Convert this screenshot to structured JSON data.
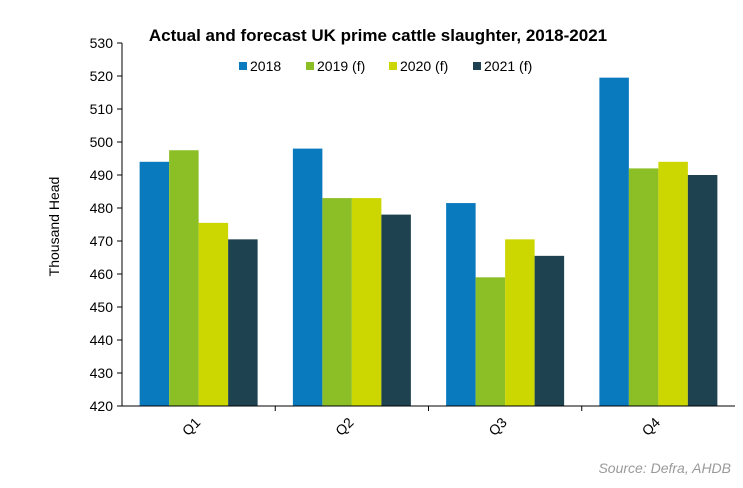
{
  "chart_data": {
    "type": "bar",
    "title": "Actual and forecast UK prime cattle slaughter, 2018-2021",
    "xlabel": "",
    "ylabel": "Thousand  Head",
    "ylim": [
      420,
      530
    ],
    "yticks": [
      420,
      430,
      440,
      450,
      460,
      470,
      480,
      490,
      500,
      510,
      520,
      530
    ],
    "categories": [
      "Q1",
      "Q2",
      "Q3",
      "Q4"
    ],
    "legend_position": "top",
    "grid": false,
    "series": [
      {
        "name": "2018",
        "color": "#0A7ABF",
        "values": [
          494,
          498,
          481.5,
          519.5
        ]
      },
      {
        "name": "2019 (f)",
        "color": "#8CBF26",
        "values": [
          497.5,
          483,
          459,
          492
        ]
      },
      {
        "name": "2020 (f)",
        "color": "#CCD600",
        "values": [
          475.5,
          483,
          470.5,
          494
        ]
      },
      {
        "name": "2021 (f)",
        "color": "#1F4250",
        "values": [
          470.5,
          478,
          465.5,
          490
        ]
      }
    ]
  },
  "source": "Source: Defra, AHDB"
}
